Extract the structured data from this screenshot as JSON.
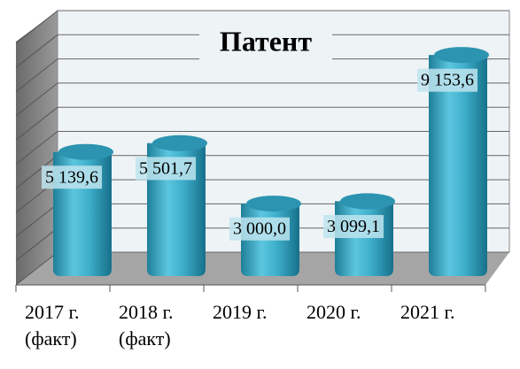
{
  "chart_data": {
    "type": "bar3d",
    "title": "Патент",
    "categories": [
      "2017 г. (факт)",
      "2018 г. (факт)",
      "2019 г.",
      "2020 г.",
      "2021 г."
    ],
    "values": [
      5139.6,
      5501.7,
      3000.0,
      3099.1,
      9153.6
    ],
    "value_labels": [
      "5 139,6",
      "5 501,7",
      "3 000,0",
      "3 099,1",
      "9 153,6"
    ],
    "color": "#38a9c6",
    "ylim": [
      0,
      10000
    ],
    "yticks": [
      0,
      1000,
      2000,
      3000,
      4000,
      5000,
      6000,
      7000,
      8000,
      9000,
      10000
    ],
    "grid": true
  }
}
